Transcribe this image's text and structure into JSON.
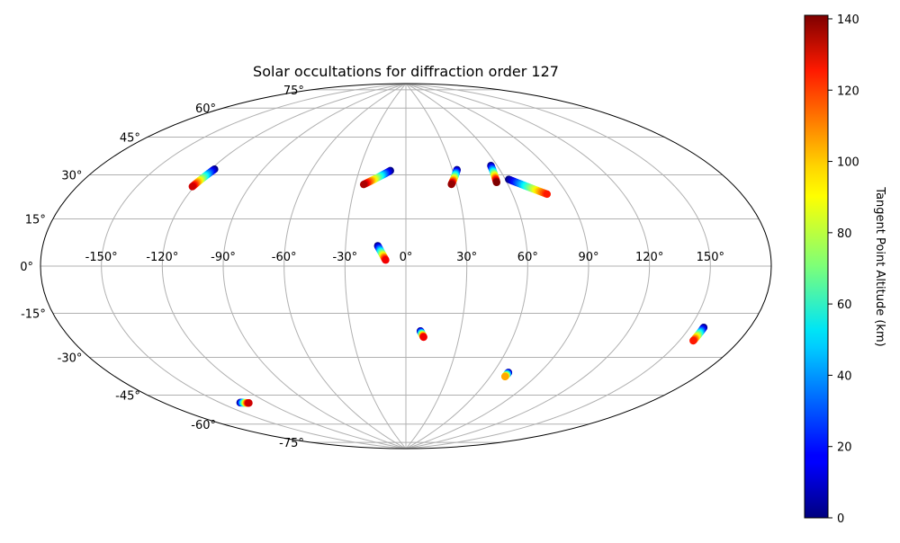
{
  "chart_data": {
    "type": "scatter",
    "projection": "aitoff",
    "title": "Solar occultations for diffraction order 127",
    "xlabel": "",
    "ylabel": "",
    "grid": true,
    "lon_ticks": [
      -150,
      -120,
      -90,
      -60,
      -30,
      0,
      30,
      60,
      90,
      120,
      150
    ],
    "lon_tick_labels": [
      "-150°",
      "-120°",
      "-90°",
      "-60°",
      "-30°",
      "0°",
      "30°",
      "60°",
      "90°",
      "120°",
      "150°"
    ],
    "lat_ticks": [
      75,
      60,
      45,
      30,
      15,
      0,
      -15,
      -30,
      -45,
      -60,
      -75
    ],
    "lat_tick_labels": [
      "75°",
      "60°",
      "45°",
      "30°",
      "15°",
      "0°",
      "-15°",
      "-30°",
      "-45°",
      "-60°",
      "-75°"
    ],
    "colorbar": {
      "label": "Tangent Point Altitude (km)",
      "range": [
        0,
        141
      ],
      "ticks": [
        0,
        20,
        40,
        60,
        80,
        100,
        120,
        140
      ],
      "tick_labels": [
        "0",
        "20",
        "40",
        "60",
        "80",
        "100",
        "120",
        "140"
      ],
      "colormap": "jet",
      "placement": "right"
    },
    "series": [
      {
        "lon_start": -118,
        "lat_start": 41,
        "lon_end": -121,
        "lat_end": 33,
        "alt_start": 0,
        "alt_end": 130
      },
      {
        "lon_start": -10,
        "lat_start": 47,
        "lon_end": -25,
        "lat_end": 40,
        "alt_start": 0,
        "alt_end": 135
      },
      {
        "lon_start": 33,
        "lat_start": 47,
        "lon_end": 27,
        "lat_end": 40,
        "alt_start": 0,
        "alt_end": 138
      },
      {
        "lon_start": 56,
        "lat_start": 48,
        "lon_end": 54,
        "lat_end": 40,
        "alt_start": 0,
        "alt_end": 141
      },
      {
        "lon_start": 62,
        "lat_start": 41,
        "lon_end": 79,
        "lat_end": 33,
        "alt_start": 0,
        "alt_end": 120
      },
      {
        "lon_start": -14,
        "lat_start": 10,
        "lon_end": -10,
        "lat_end": 3,
        "alt_start": 0,
        "alt_end": 125
      },
      {
        "lon_start": 8,
        "lat_start": -32,
        "lon_end": 10,
        "lat_end": -35,
        "alt_start": 0,
        "alt_end": 125
      },
      {
        "lon_start": 70,
        "lat_start": -50,
        "lon_end": 70,
        "lat_end": -52,
        "alt_start": 0,
        "alt_end": 100
      },
      {
        "lon_start": 157,
        "lat_start": -22,
        "lon_end": 157,
        "lat_end": -27,
        "alt_start": 0,
        "alt_end": 120
      },
      {
        "lon_start": -138,
        "lat_start": -57,
        "lon_end": -133,
        "lat_end": -58,
        "alt_start": 0,
        "alt_end": 130
      }
    ]
  }
}
